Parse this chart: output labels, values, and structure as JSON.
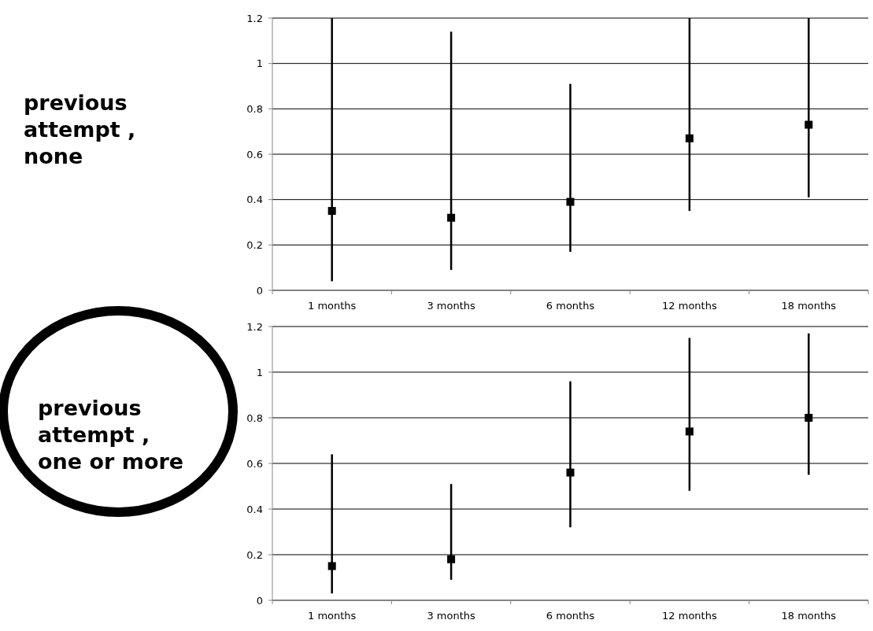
{
  "chart_data": [
    {
      "type": "scatter",
      "title": "previous attempt , none",
      "categories": [
        "1 months",
        "3 months",
        "6 months",
        "12 months",
        "18 months"
      ],
      "series": [
        {
          "color": "#000000",
          "values": [
            0.35,
            0.32,
            0.39,
            0.67,
            0.73
          ],
          "errors": [
            [
              0.04,
              1.2
            ],
            [
              0.09,
              1.14
            ],
            [
              0.17,
              0.91
            ],
            [
              0.35,
              1.2
            ],
            [
              0.41,
              1.2
            ]
          ]
        }
      ],
      "ylim": [
        0,
        1.2
      ],
      "yticks": [
        0,
        0.2,
        0.4,
        0.6,
        0.8,
        1,
        1.2
      ],
      "grid": "y",
      "marker": "square"
    },
    {
      "type": "scatter",
      "title": "previous attempt , one or more",
      "categories": [
        "1 months",
        "3 months",
        "6 months",
        "12 months",
        "18 months"
      ],
      "series": [
        {
          "color": "#000000",
          "values": [
            0.15,
            0.18,
            0.56,
            0.74,
            0.8
          ],
          "errors": [
            [
              0.03,
              0.64
            ],
            [
              0.09,
              0.51
            ],
            [
              0.32,
              0.96
            ],
            [
              0.48,
              1.15
            ],
            [
              0.55,
              1.17
            ]
          ]
        }
      ],
      "ylim": [
        0,
        1.2
      ],
      "yticks": [
        0,
        0.2,
        0.4,
        0.6,
        0.8,
        1,
        1.2
      ],
      "grid": "y",
      "marker": "square"
    }
  ]
}
